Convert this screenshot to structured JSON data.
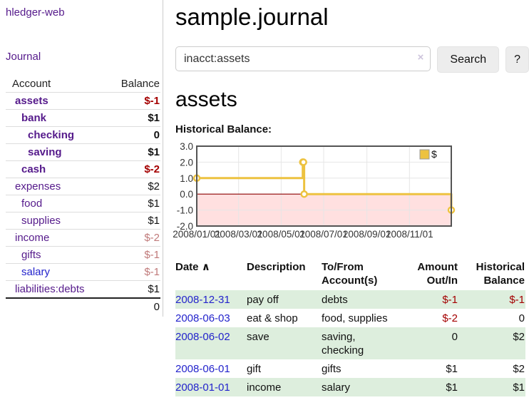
{
  "app": {
    "brand": "hledger-web"
  },
  "sidebar": {
    "nav": [
      {
        "label": "Journal"
      }
    ],
    "accounts_table": {
      "headers": {
        "account": "Account",
        "balance": "Balance"
      },
      "rows": [
        {
          "name": "assets",
          "balance": "$-1",
          "depth": 0,
          "bold": true,
          "balance_tone": "neg"
        },
        {
          "name": "bank",
          "balance": "$1",
          "depth": 1,
          "bold": true,
          "balance_tone": ""
        },
        {
          "name": "checking",
          "balance": "0",
          "depth": 2,
          "bold": true,
          "balance_tone": ""
        },
        {
          "name": "saving",
          "balance": "$1",
          "depth": 2,
          "bold": true,
          "balance_tone": ""
        },
        {
          "name": "cash",
          "balance": "$-2",
          "depth": 1,
          "bold": true,
          "balance_tone": "neg"
        },
        {
          "name": "expenses",
          "balance": "$2",
          "depth": 0,
          "bold": false,
          "balance_tone": ""
        },
        {
          "name": "food",
          "balance": "$1",
          "depth": 1,
          "bold": false,
          "balance_tone": ""
        },
        {
          "name": "supplies",
          "balance": "$1",
          "depth": 1,
          "bold": false,
          "balance_tone": ""
        },
        {
          "name": "income",
          "balance": "$-2",
          "depth": 0,
          "bold": false,
          "balance_tone": "negf"
        },
        {
          "name": "gifts",
          "balance": "$-1",
          "depth": 1,
          "bold": false,
          "balance_tone": "negf"
        },
        {
          "name": "salary",
          "balance": "$-1",
          "depth": 1,
          "bold": false,
          "balance_tone": "negf",
          "name_tone": "blue"
        },
        {
          "name": "liabilities:debts",
          "balance": "$1",
          "depth": 0,
          "bold": false,
          "balance_tone": ""
        }
      ],
      "total": "0"
    }
  },
  "main": {
    "title": "sample.journal",
    "search": {
      "value": "inacct:assets",
      "clear_icon": "×",
      "button": "Search",
      "help_button": "?"
    },
    "account_heading": "assets",
    "chart_label": "Historical Balance:"
  },
  "chart_data": {
    "type": "line",
    "step": true,
    "title": "Historical Balance",
    "series": [
      {
        "name": "$",
        "points": [
          [
            "2008-01-01",
            1
          ],
          [
            "2008-06-01",
            2
          ],
          [
            "2008-06-02",
            2
          ],
          [
            "2008-06-03",
            0
          ],
          [
            "2008-12-31",
            -1
          ]
        ]
      }
    ],
    "x_domain": [
      "2008-01-01",
      "2008-12-31"
    ],
    "x_ticks": [
      {
        "date": "2008-01-01",
        "label": "2008/01/01"
      },
      {
        "date": "2008-03-01",
        "label": "2008/03/01"
      },
      {
        "date": "2008-05-01",
        "label": "2008/05/01"
      },
      {
        "date": "2008-07-01",
        "label": "2008/07/01"
      },
      {
        "date": "2008-09-01",
        "label": "2008/09/01"
      },
      {
        "date": "2008-11-01",
        "label": "2008/11/01"
      }
    ],
    "y_ticks": [
      3,
      2,
      1,
      0,
      -1,
      -2
    ],
    "y_tick_labels": [
      "3.0",
      "2.0",
      "1.0",
      "0.0",
      "-1.0",
      "-2.0"
    ],
    "ylim": [
      -2,
      3
    ],
    "grid": true,
    "negative_region_shaded": true,
    "legend": {
      "position": "top-right",
      "entries": [
        "$"
      ]
    }
  },
  "register": {
    "headers": {
      "date": "Date",
      "sort_icon": "∧",
      "description": "Description",
      "account": "To/From Account(s)",
      "amount": "Amount Out/In",
      "balance": "Historical Balance"
    },
    "rows": [
      {
        "date": "2008-12-31",
        "description": "pay off",
        "account": "debts",
        "amount": "$-1",
        "amount_tone": "neg",
        "balance": "$-1",
        "balance_tone": "neg"
      },
      {
        "date": "2008-06-03",
        "description": "eat & shop",
        "account": "food, supplies",
        "amount": "$-2",
        "amount_tone": "neg",
        "balance": "0",
        "balance_tone": ""
      },
      {
        "date": "2008-06-02",
        "description": "save",
        "account": "saving, checking",
        "amount": "0",
        "amount_tone": "",
        "balance": "$2",
        "balance_tone": ""
      },
      {
        "date": "2008-06-01",
        "description": "gift",
        "account": "gifts",
        "amount": "$1",
        "amount_tone": "",
        "balance": "$2",
        "balance_tone": ""
      },
      {
        "date": "2008-01-01",
        "description": "income",
        "account": "salary",
        "amount": "$1",
        "amount_tone": "",
        "balance": "$1",
        "balance_tone": ""
      }
    ]
  },
  "colors": {
    "link_purple": "#551a8b",
    "link_blue": "#2323cc",
    "negative_strong": "#a40000",
    "negative_faded": "#c07a7a",
    "row_stripe_green": "#ddeedd",
    "chart_line": "#edc240",
    "chart_negative_fill": "rgba(255,0,0,0.12)",
    "chart_zero_line": "#8b0000",
    "chart_border": "#545454",
    "divider": "#cccccc"
  }
}
